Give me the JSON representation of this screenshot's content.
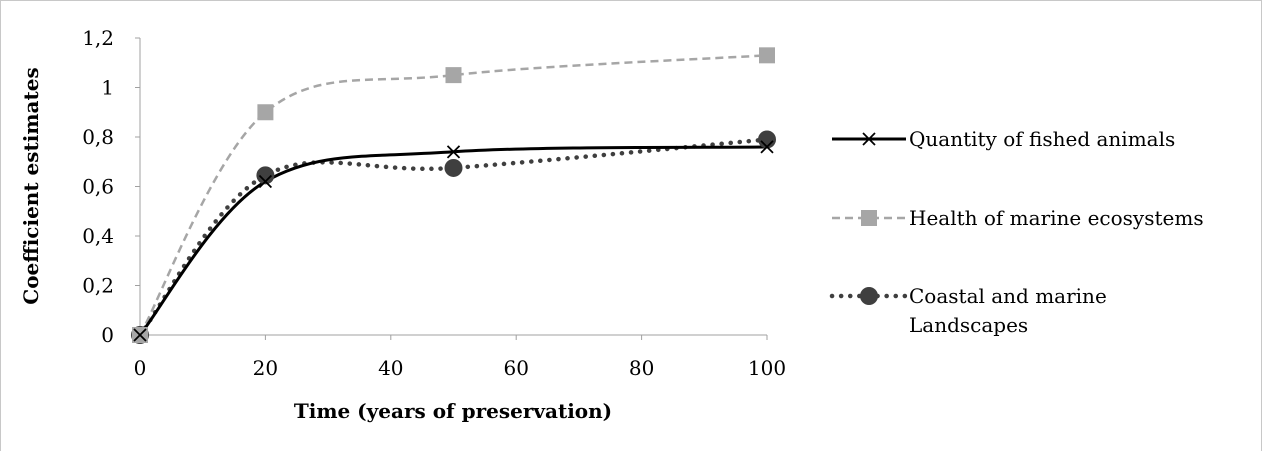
{
  "chart_data": {
    "type": "line",
    "xlabel": "Time (years of preservation)",
    "ylabel": "Coefficient estimates",
    "xlim": [
      0,
      100
    ],
    "ylim": [
      0,
      1.2
    ],
    "xticks": [
      "0",
      "20",
      "40",
      "60",
      "80",
      "100"
    ],
    "yticks": [
      "0",
      "0,2",
      "0,4",
      "0,6",
      "0,8",
      "1",
      "1,2"
    ],
    "x": [
      0,
      20,
      50,
      100
    ],
    "series": [
      {
        "name": "Quantity of fished animals",
        "values": [
          0,
          0.62,
          0.74,
          0.76
        ],
        "color": "#000000",
        "marker": "x",
        "style": "solid"
      },
      {
        "name": "Health of marine ecosystems",
        "values": [
          0,
          0.9,
          1.05,
          1.13
        ],
        "color": "#a6a6a6",
        "marker": "square",
        "style": "dashed"
      },
      {
        "name": "Coastal and marine Landscapes",
        "values": [
          0,
          0.645,
          0.675,
          0.79
        ],
        "color": "#3f3f3f",
        "marker": "circle",
        "style": "dotted"
      }
    ],
    "legend": [
      {
        "lines": [
          "Quantity of fished animals"
        ]
      },
      {
        "lines": [
          "Health of marine ecosystems"
        ]
      },
      {
        "lines": [
          "Coastal and marine",
          "Landscapes"
        ]
      }
    ],
    "legend_position": "right",
    "grid": false
  }
}
